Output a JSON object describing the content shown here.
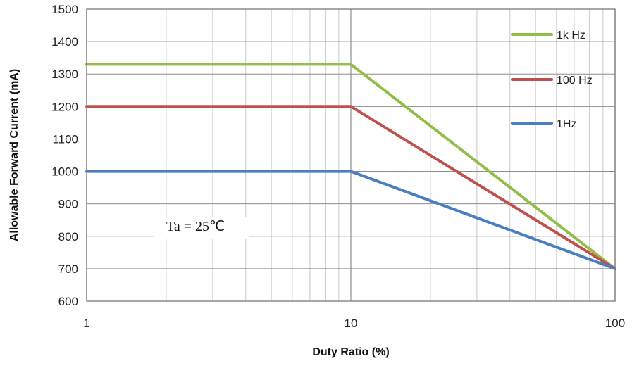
{
  "chart_data": {
    "type": "line",
    "title": "",
    "xlabel": "Duty Ratio (%)",
    "ylabel": "Allowable Forward Current (mA)",
    "xscale": "log",
    "xlim": [
      1,
      100
    ],
    "ylim": [
      600,
      1500
    ],
    "x_ticks": [
      1,
      10,
      100
    ],
    "x_tick_labels": [
      "1",
      "10",
      "100"
    ],
    "y_ticks": [
      600,
      700,
      800,
      900,
      1000,
      1100,
      1200,
      1300,
      1400,
      1500
    ],
    "y_tick_labels": [
      "600",
      "700",
      "800",
      "900",
      "1000",
      "1100",
      "1200",
      "1300",
      "1400",
      "1500"
    ],
    "grid": true,
    "legend_position": "top-right",
    "annotation": "Ta = 25℃",
    "series": [
      {
        "name": "1k Hz",
        "color": "#92BE47",
        "x": [
          1,
          10,
          100
        ],
        "y": [
          1330,
          1330,
          700
        ]
      },
      {
        "name": "100 Hz",
        "color": "#C0504D",
        "x": [
          1,
          10,
          100
        ],
        "y": [
          1200,
          1200,
          700
        ]
      },
      {
        "name": "1Hz",
        "color": "#4A7EC1",
        "x": [
          1,
          10,
          100
        ],
        "y": [
          1000,
          1000,
          700
        ]
      }
    ]
  }
}
